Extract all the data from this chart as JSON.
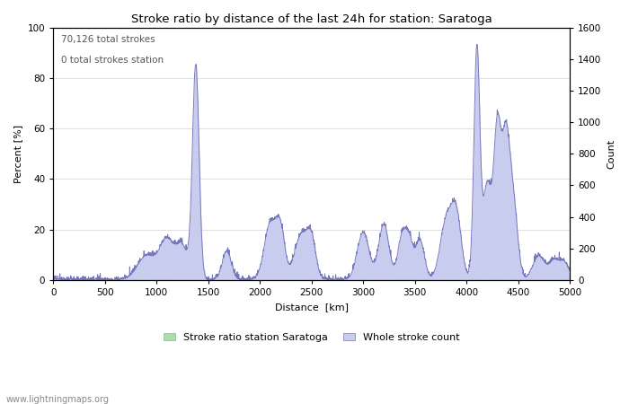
{
  "title": "Stroke ratio by distance of the last 24h for station: Saratoga",
  "xlabel": "Distance  [km]",
  "ylabel_left": "Percent [%]",
  "ylabel_right": "Count",
  "annotation_line1": "70,126 total strokes",
  "annotation_line2": "0 total strokes station",
  "watermark": "www.lightningmaps.org",
  "xlim": [
    0,
    5000
  ],
  "ylim_left": [
    0,
    100
  ],
  "ylim_right": [
    0,
    1600
  ],
  "xticks": [
    0,
    500,
    1000,
    1500,
    2000,
    2500,
    3000,
    3500,
    4000,
    4500,
    5000
  ],
  "yticks_left": [
    0,
    20,
    40,
    60,
    80,
    100
  ],
  "yticks_right": [
    0,
    200,
    400,
    600,
    800,
    1000,
    1200,
    1400,
    1600
  ],
  "color_green": "#aaddaa",
  "color_blue": "#c8cdf0",
  "color_line_blue": "#7777bb",
  "legend_label_green": "Stroke ratio station Saratoga",
  "legend_label_blue": "Whole stroke count",
  "figsize": [
    7.0,
    4.5
  ],
  "dpi": 100
}
